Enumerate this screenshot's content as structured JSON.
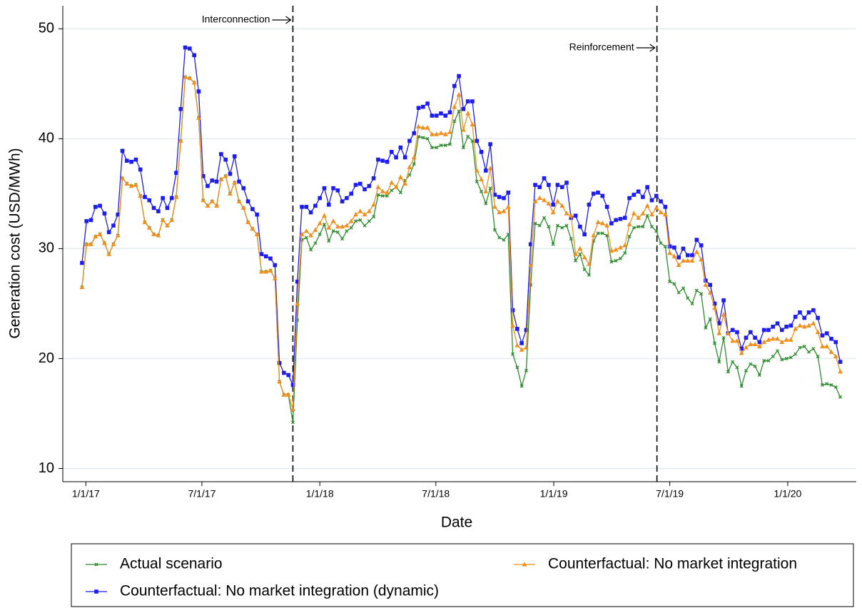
{
  "chart_data": {
    "type": "line",
    "x_label": "Date",
    "y_label": "Generation cost (USD/MWh)",
    "xlim": [
      "2016-11-26",
      "2020-04-17"
    ],
    "ylim": [
      8.8,
      52.1
    ],
    "yticks": [
      10,
      20,
      30,
      40,
      50
    ],
    "xticks": [
      {
        "value": "2017-01-01",
        "label": "1/1/17"
      },
      {
        "value": "2017-07-01",
        "label": "7/1/17"
      },
      {
        "value": "2018-01-01",
        "label": "1/1/18"
      },
      {
        "value": "2018-07-01",
        "label": "7/1/18"
      },
      {
        "value": "2019-01-01",
        "label": "1/1/19"
      },
      {
        "value": "2019-07-01",
        "label": "7/1/19"
      },
      {
        "value": "2020-01-01",
        "label": "1/1/20"
      }
    ],
    "grid": true,
    "annotations": [
      {
        "text": "Interconnection",
        "x": "2017-11-20"
      },
      {
        "text": "Reinforcement",
        "x": "2019-06-11"
      }
    ],
    "x": [
      "2016-12-26",
      "2017-01-02",
      "2017-01-09",
      "2017-01-16",
      "2017-01-23",
      "2017-01-30",
      "2017-02-06",
      "2017-02-13",
      "2017-02-20",
      "2017-02-27",
      "2017-03-06",
      "2017-03-13",
      "2017-03-20",
      "2017-03-27",
      "2017-04-03",
      "2017-04-10",
      "2017-04-17",
      "2017-04-24",
      "2017-05-01",
      "2017-05-08",
      "2017-05-15",
      "2017-05-22",
      "2017-05-29",
      "2017-06-05",
      "2017-06-12",
      "2017-06-19",
      "2017-06-26",
      "2017-07-03",
      "2017-07-10",
      "2017-07-17",
      "2017-07-24",
      "2017-07-31",
      "2017-08-07",
      "2017-08-14",
      "2017-08-21",
      "2017-08-28",
      "2017-09-04",
      "2017-09-11",
      "2017-09-18",
      "2017-09-25",
      "2017-10-02",
      "2017-10-09",
      "2017-10-16",
      "2017-10-23",
      "2017-10-30",
      "2017-11-06",
      "2017-11-13",
      "2017-11-20",
      "2017-11-27",
      "2017-12-04",
      "2017-12-11",
      "2017-12-18",
      "2017-12-25",
      "2018-01-01",
      "2018-01-08",
      "2018-01-15",
      "2018-01-22",
      "2018-01-29",
      "2018-02-05",
      "2018-02-12",
      "2018-02-19",
      "2018-02-26",
      "2018-03-05",
      "2018-03-12",
      "2018-03-19",
      "2018-03-26",
      "2018-04-02",
      "2018-04-09",
      "2018-04-16",
      "2018-04-23",
      "2018-04-30",
      "2018-05-07",
      "2018-05-14",
      "2018-05-21",
      "2018-05-28",
      "2018-06-04",
      "2018-06-11",
      "2018-06-18",
      "2018-06-25",
      "2018-07-02",
      "2018-07-09",
      "2018-07-16",
      "2018-07-23",
      "2018-07-30",
      "2018-08-06",
      "2018-08-13",
      "2018-08-20",
      "2018-08-27",
      "2018-09-03",
      "2018-09-10",
      "2018-09-17",
      "2018-09-24",
      "2018-10-01",
      "2018-10-08",
      "2018-10-15",
      "2018-10-22",
      "2018-10-29",
      "2018-11-05",
      "2018-11-12",
      "2018-11-19",
      "2018-11-26",
      "2018-12-03",
      "2018-12-10",
      "2018-12-17",
      "2018-12-24",
      "2018-12-31",
      "2019-01-07",
      "2019-01-14",
      "2019-01-21",
      "2019-01-28",
      "2019-02-04",
      "2019-02-11",
      "2019-02-18",
      "2019-02-25",
      "2019-03-04",
      "2019-03-11",
      "2019-03-18",
      "2019-03-25",
      "2019-04-01",
      "2019-04-08",
      "2019-04-15",
      "2019-04-22",
      "2019-04-29",
      "2019-05-06",
      "2019-05-13",
      "2019-05-20",
      "2019-05-27",
      "2019-06-03",
      "2019-06-10",
      "2019-06-17",
      "2019-06-24",
      "2019-07-01",
      "2019-07-08",
      "2019-07-15",
      "2019-07-22",
      "2019-07-29",
      "2019-08-05",
      "2019-08-12",
      "2019-08-19",
      "2019-08-26",
      "2019-09-02",
      "2019-09-09",
      "2019-09-16",
      "2019-09-23",
      "2019-09-30",
      "2019-10-07",
      "2019-10-14",
      "2019-10-21",
      "2019-10-28",
      "2019-11-04",
      "2019-11-11",
      "2019-11-18",
      "2019-11-25",
      "2019-12-02",
      "2019-12-09",
      "2019-12-16",
      "2019-12-23",
      "2019-12-30",
      "2020-01-06",
      "2020-01-13",
      "2020-01-20",
      "2020-01-27",
      "2020-02-03",
      "2020-02-10",
      "2020-02-17",
      "2020-02-24",
      "2020-03-02",
      "2020-03-09",
      "2020-03-16",
      "2020-03-23"
    ],
    "series": [
      {
        "name": "Actual scenario",
        "color": "#2e8b2e",
        "marker": "x",
        "values": [
          26.5,
          30.4,
          30.4,
          31.1,
          31.3,
          30.5,
          29.5,
          30.4,
          31.2,
          36.4,
          35.9,
          35.7,
          35.8,
          34.8,
          32.4,
          31.9,
          31.3,
          31.2,
          32.6,
          32.1,
          32.6,
          34.7,
          39.8,
          45.6,
          45.5,
          45.1,
          41.9,
          34.4,
          33.9,
          34.3,
          33.9,
          36.3,
          36.6,
          35.0,
          36.0,
          34.3,
          33.7,
          32.4,
          31.8,
          31.3,
          27.9,
          27.9,
          28.0,
          27.3,
          17.9,
          16.7,
          16.7,
          14.2,
          23.5,
          30.8,
          31.0,
          29.9,
          30.5,
          31.3,
          32.2,
          30.7,
          31.6,
          31.5,
          30.9,
          31.6,
          31.9,
          32.5,
          32.6,
          32.1,
          32.5,
          32.9,
          34.9,
          34.8,
          34.8,
          35.3,
          35.6,
          35.1,
          36.2,
          36.7,
          37.7,
          40.2,
          40.1,
          40.0,
          39.2,
          39.2,
          39.4,
          39.4,
          39.5,
          41.6,
          42.5,
          39.2,
          40.2,
          39.8,
          36.1,
          35.2,
          34.1,
          35.5,
          31.7,
          31.0,
          30.8,
          31.3,
          20.4,
          19.2,
          17.5,
          18.9,
          26.7,
          32.3,
          32.1,
          32.8,
          32.0,
          30.4,
          32.1,
          31.9,
          32.1,
          30.9,
          28.9,
          29.5,
          28.1,
          27.6,
          30.7,
          31.4,
          31.4,
          31.2,
          28.8,
          28.9,
          29.1,
          29.6,
          31.1,
          31.9,
          32.0,
          32.0,
          33.0,
          32.0,
          31.6,
          30.5,
          30.2,
          27.0,
          26.8,
          26.0,
          26.4,
          25.5,
          25.0,
          26.2,
          25.9,
          22.8,
          23.6,
          21.4,
          19.7,
          21.9,
          18.8,
          19.7,
          19.2,
          17.5,
          18.9,
          19.5,
          19.3,
          18.5,
          19.8,
          19.8,
          20.2,
          20.7,
          19.9,
          20.0,
          20.1,
          20.4,
          21.0,
          21.1,
          20.6,
          20.9,
          20.2,
          17.6,
          17.7,
          17.6,
          17.4,
          16.5
        ]
      },
      {
        "name": "Counterfactual: No market integration (dynamic)",
        "color": "#1c1cf5",
        "marker": "square",
        "values": [
          28.7,
          32.5,
          32.6,
          33.8,
          33.9,
          33.2,
          31.5,
          32.1,
          33.1,
          38.9,
          38.0,
          37.9,
          38.1,
          37.2,
          34.7,
          34.4,
          33.7,
          33.4,
          34.6,
          33.7,
          34.6,
          36.9,
          42.7,
          48.3,
          48.2,
          47.6,
          44.3,
          36.6,
          35.7,
          36.2,
          36.1,
          38.6,
          38.1,
          36.8,
          38.4,
          36.1,
          35.5,
          34.3,
          33.6,
          33.1,
          29.5,
          29.3,
          29.1,
          28.5,
          19.6,
          18.7,
          18.5,
          17.6,
          27.0,
          33.8,
          33.8,
          33.3,
          33.9,
          34.6,
          35.5,
          34.0,
          35.5,
          35.3,
          34.3,
          34.6,
          35.0,
          35.8,
          35.9,
          35.4,
          35.7,
          36.4,
          38.1,
          38.0,
          37.9,
          38.8,
          38.3,
          39.2,
          38.3,
          39.8,
          40.5,
          42.8,
          42.9,
          43.2,
          42.1,
          42.1,
          42.3,
          42.1,
          42.4,
          44.8,
          45.7,
          42.7,
          43.4,
          43.4,
          39.8,
          38.8,
          37.1,
          39.5,
          34.9,
          34.7,
          34.6,
          35.1,
          24.4,
          22.7,
          21.4,
          22.6,
          30.4,
          35.8,
          35.6,
          36.4,
          35.8,
          34.0,
          35.8,
          35.6,
          36.0,
          32.8,
          33.0,
          32.0,
          31.3,
          34.0,
          35.0,
          35.1,
          34.8,
          33.8,
          32.3,
          32.6,
          32.7,
          32.8,
          34.6,
          34.9,
          35.2,
          34.7,
          35.6,
          34.4,
          34.8,
          34.3,
          33.8,
          30.2,
          30.1,
          29.2,
          30.0,
          29.4,
          29.4,
          30.8,
          30.3,
          27.1,
          26.7,
          25.0,
          23.2,
          25.3,
          22.3,
          22.6,
          22.4,
          20.9,
          21.9,
          22.4,
          21.9,
          21.5,
          22.6,
          22.6,
          22.9,
          23.2,
          22.6,
          22.9,
          23.0,
          23.8,
          24.2,
          23.7,
          24.2,
          24.4,
          23.7,
          22.1,
          22.3,
          21.8,
          21.5,
          19.7
        ]
      },
      {
        "name": "Counterfactual: No market integration",
        "color": "#f28e1c",
        "marker": "triangle",
        "values": [
          26.5,
          30.4,
          30.4,
          31.1,
          31.3,
          30.5,
          29.5,
          30.4,
          31.2,
          36.4,
          35.9,
          35.7,
          35.8,
          34.8,
          32.4,
          31.9,
          31.3,
          31.2,
          32.6,
          32.1,
          32.6,
          34.7,
          39.8,
          45.6,
          45.5,
          45.1,
          41.9,
          34.4,
          33.9,
          34.3,
          33.9,
          36.3,
          36.6,
          35.0,
          36.0,
          34.3,
          33.7,
          32.4,
          31.8,
          31.3,
          27.9,
          27.9,
          28.0,
          27.3,
          17.9,
          16.7,
          16.7,
          15.4,
          25.0,
          31.3,
          31.6,
          31.2,
          31.7,
          32.3,
          33.0,
          31.9,
          32.5,
          32.0,
          32.0,
          32.1,
          32.5,
          33.1,
          33.4,
          33.1,
          33.4,
          34.0,
          35.6,
          35.2,
          35.1,
          36.0,
          35.6,
          36.5,
          35.9,
          37.4,
          38.3,
          41.1,
          41.0,
          41.0,
          40.4,
          40.4,
          40.5,
          40.4,
          40.6,
          42.9,
          44.0,
          40.8,
          42.3,
          41.3,
          37.1,
          36.3,
          35.2,
          37.3,
          33.8,
          33.3,
          33.4,
          33.8,
          23.0,
          21.2,
          20.8,
          21.0,
          28.5,
          34.3,
          34.6,
          34.4,
          34.1,
          33.3,
          34.3,
          33.9,
          33.2,
          33.0,
          29.5,
          30.0,
          29.2,
          28.6,
          31.2,
          32.4,
          32.3,
          32.1,
          29.8,
          29.9,
          30.1,
          30.3,
          32.2,
          33.2,
          32.8,
          33.2,
          33.9,
          33.1,
          33.7,
          33.3,
          33.1,
          29.6,
          29.3,
          28.5,
          28.9,
          28.9,
          28.9,
          29.7,
          29.0,
          26.7,
          26.0,
          24.6,
          22.3,
          24.0,
          22.3,
          21.6,
          21.6,
          20.5,
          21.0,
          21.3,
          21.3,
          21.1,
          21.5,
          21.7,
          21.8,
          21.8,
          21.5,
          21.7,
          21.7,
          22.7,
          23.0,
          22.9,
          23.0,
          23.2,
          22.4,
          21.1,
          21.1,
          20.6,
          20.2,
          18.8
        ]
      }
    ]
  }
}
